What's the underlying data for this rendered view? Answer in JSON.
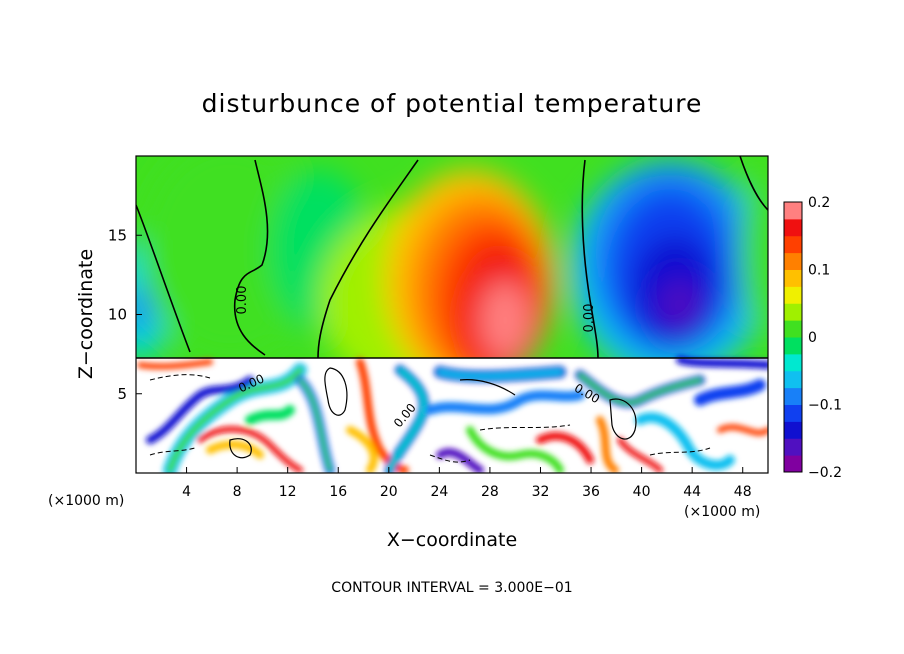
{
  "chart_data": {
    "type": "heatmap",
    "title": "disturbunce of potential temperature",
    "xlabel": "X−coordinate",
    "ylabel": "Z−coordinate",
    "x_unit_left": "(×1000 m)",
    "x_unit_right": "(×1000 m)",
    "xlim": [
      0,
      50
    ],
    "ylim": [
      0,
      20
    ],
    "x_ticks": [
      "4",
      "8",
      "12",
      "16",
      "20",
      "24",
      "28",
      "32",
      "36",
      "40",
      "44",
      "48"
    ],
    "y_ticks": [
      "5",
      "10",
      "15"
    ],
    "contour_labels": [
      "0.00",
      "0.00",
      "0.00",
      "0.00",
      "0.00"
    ],
    "footer": "CONTOUR INTERVAL = 3.000E−01",
    "colorbar": {
      "range": [
        -0.2,
        0.2
      ],
      "ticks": [
        "0.2",
        "0.1",
        "0",
        "−0.1",
        "−0.2"
      ],
      "colors": [
        "#8000a0",
        "#5010c0",
        "#1010d0",
        "#1040f0",
        "#1880f8",
        "#10c0f0",
        "#00e8d0",
        "#00e060",
        "#40e020",
        "#a0f000",
        "#f0f000",
        "#ffc000",
        "#ff8000",
        "#ff4000",
        "#f01010",
        "#ff8080"
      ]
    }
  }
}
